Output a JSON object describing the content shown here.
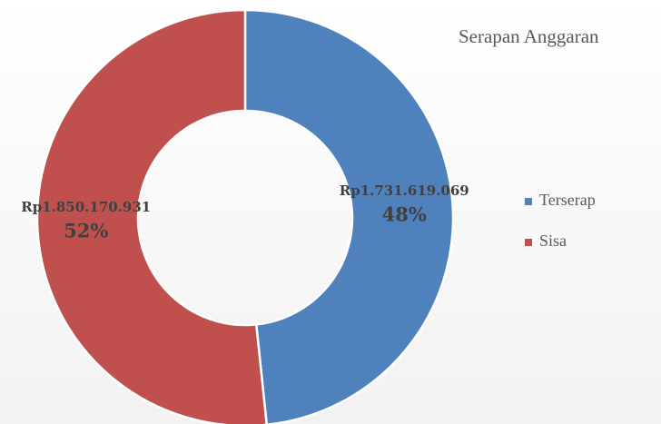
{
  "chart_data": {
    "type": "donut",
    "title": "Serapan Anggaran",
    "categories": [
      "Terserap",
      "Sisa"
    ],
    "values": [
      1731619069,
      1850170931
    ],
    "value_labels": [
      "Rp1.731.619.069",
      "Rp1.850.170.931"
    ],
    "percent_labels": [
      "48%",
      "52%"
    ],
    "colors": [
      "#4f81bd",
      "#c0504d"
    ],
    "legend": "right"
  }
}
